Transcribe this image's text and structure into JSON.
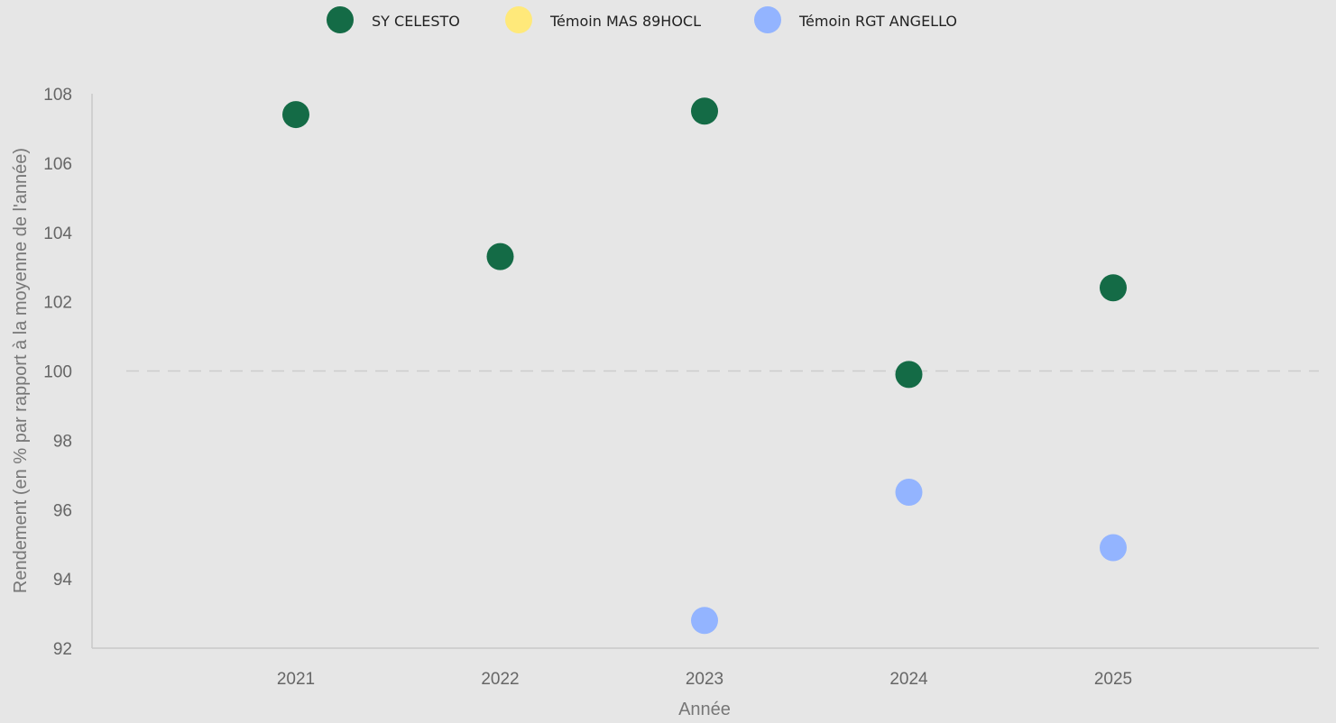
{
  "chart_data": {
    "type": "scatter",
    "title": "",
    "xlabel": "Année",
    "ylabel": "Rendement (en % par rapport à la moyenne de l'année)",
    "categories": [
      "2021",
      "2022",
      "2023",
      "2024",
      "2025"
    ],
    "ylim": [
      92,
      108
    ],
    "yticks": [
      92,
      94,
      96,
      98,
      100,
      102,
      104,
      106,
      108
    ],
    "reference_line": 100,
    "legend_position": "top",
    "grid": false,
    "series": [
      {
        "name": "SY CELESTO",
        "color": "#146b46",
        "points": [
          {
            "x": "2021",
            "y": 107.4
          },
          {
            "x": "2022",
            "y": 103.3
          },
          {
            "x": "2023",
            "y": 107.5
          },
          {
            "x": "2024",
            "y": 99.9
          },
          {
            "x": "2025",
            "y": 102.4
          }
        ]
      },
      {
        "name": "Témoin MAS 89HOCL",
        "color": "#ffe97a",
        "points": []
      },
      {
        "name": "Témoin RGT ANGELLO",
        "color": "#93b4ff",
        "points": [
          {
            "x": "2023",
            "y": 92.8
          },
          {
            "x": "2024",
            "y": 96.5
          },
          {
            "x": "2025",
            "y": 94.9
          }
        ]
      }
    ]
  }
}
